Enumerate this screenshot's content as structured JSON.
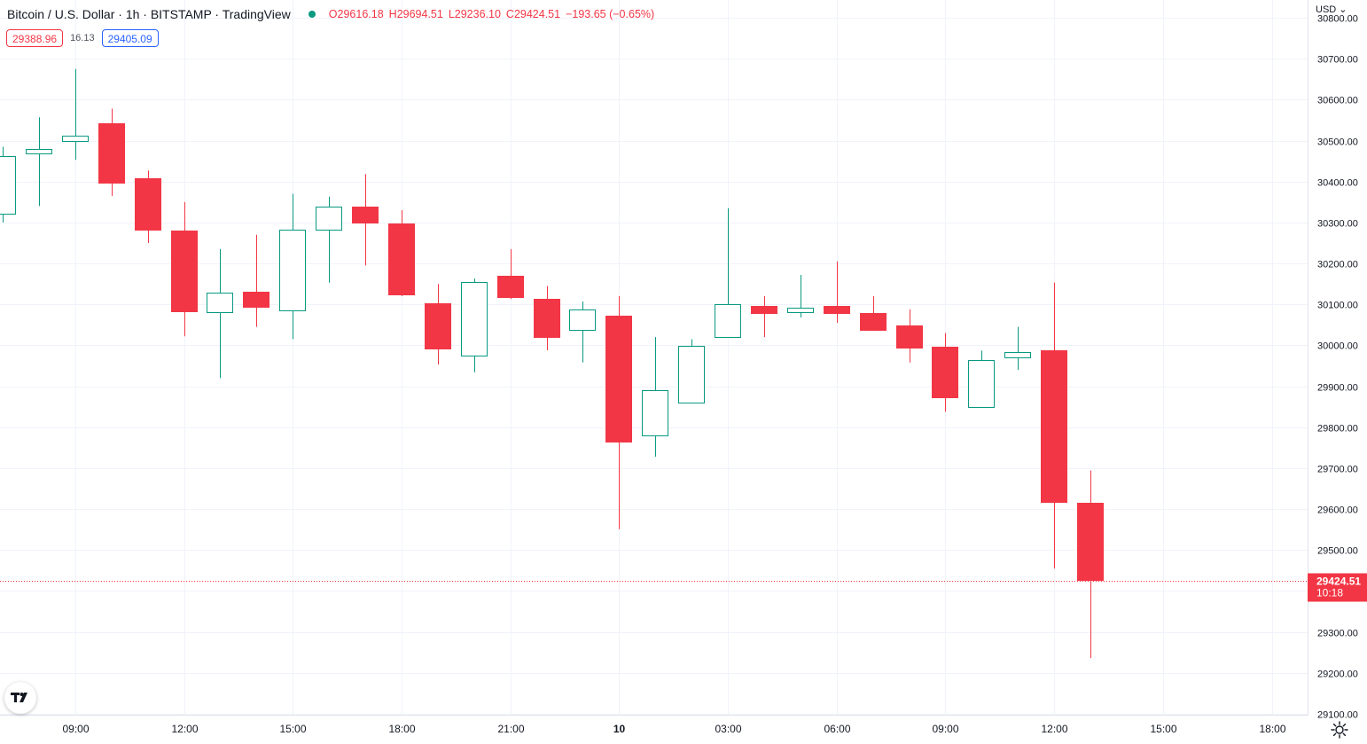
{
  "header": {
    "symbol_title": "Bitcoin / U.S. Dollar · 1h · BITSTAMP · TradingView",
    "open_label": "O",
    "open": "29616.18",
    "high_label": "H",
    "high": "29694.51",
    "low_label": "L",
    "low": "29236.10",
    "close_label": "C",
    "close": "29424.51",
    "change": "−193.65 (−0.65%)",
    "status_color": "#089981"
  },
  "quote": {
    "bid": "29388.96",
    "spread": "16.13",
    "ask": "29405.09"
  },
  "currency": "USD ⌄",
  "last_price": {
    "value": "29424.51",
    "countdown": "10:18"
  },
  "icons": {
    "logo": "tradingview-logo-icon",
    "settings": "gear-icon"
  },
  "colors": {
    "up": "#089981",
    "down": "#f23645",
    "grid": "#f0f3fa"
  },
  "chart_data": {
    "type": "candlestick",
    "x_tick_labels": [
      "09:00",
      "12:00",
      "15:00",
      "18:00",
      "21:00",
      "10",
      "03:00",
      "06:00",
      "09:00",
      "12:00",
      "15:00",
      "18:00"
    ],
    "y_tick_labels": [
      "29100.00",
      "29200.00",
      "29300.00",
      "29400.00",
      "29500.00",
      "29600.00",
      "29700.00",
      "29800.00",
      "29900.00",
      "30000.00",
      "30100.00",
      "30200.00",
      "30300.00",
      "30400.00",
      "30500.00",
      "30600.00",
      "30700.00",
      "30800.00"
    ],
    "ylim": [
      29100,
      30800
    ],
    "grid": true,
    "candles": [
      {
        "o": 30322,
        "h": 30485,
        "l": 30300,
        "c": 30462
      },
      {
        "o": 30469,
        "h": 30557,
        "l": 30340,
        "c": 30479
      },
      {
        "o": 30500,
        "h": 30675,
        "l": 30453,
        "c": 30512
      },
      {
        "o": 30542,
        "h": 30578,
        "l": 30365,
        "c": 30394
      },
      {
        "o": 30408,
        "h": 30427,
        "l": 30250,
        "c": 30280
      },
      {
        "o": 30280,
        "h": 30350,
        "l": 30022,
        "c": 30080
      },
      {
        "o": 30080,
        "h": 30235,
        "l": 29920,
        "c": 30128
      },
      {
        "o": 30130,
        "h": 30270,
        "l": 30045,
        "c": 30092
      },
      {
        "o": 30085,
        "h": 30370,
        "l": 30015,
        "c": 30283
      },
      {
        "o": 30283,
        "h": 30363,
        "l": 30153,
        "c": 30338
      },
      {
        "o": 30338,
        "h": 30418,
        "l": 30195,
        "c": 30297
      },
      {
        "o": 30297,
        "h": 30330,
        "l": 30120,
        "c": 30122
      },
      {
        "o": 30102,
        "h": 30150,
        "l": 29953,
        "c": 29990
      },
      {
        "o": 29975,
        "h": 30163,
        "l": 29934,
        "c": 30155
      },
      {
        "o": 30170,
        "h": 30235,
        "l": 30113,
        "c": 30115
      },
      {
        "o": 30113,
        "h": 30145,
        "l": 29988,
        "c": 30018
      },
      {
        "o": 30038,
        "h": 30107,
        "l": 29958,
        "c": 30088
      },
      {
        "o": 30073,
        "h": 30120,
        "l": 29551,
        "c": 29763
      },
      {
        "o": 29780,
        "h": 30020,
        "l": 29728,
        "c": 29890
      },
      {
        "o": 29860,
        "h": 30015,
        "l": 29860,
        "c": 29998
      },
      {
        "o": 30020,
        "h": 30335,
        "l": 30020,
        "c": 30101
      },
      {
        "o": 30097,
        "h": 30120,
        "l": 30020,
        "c": 30076
      },
      {
        "o": 30080,
        "h": 30172,
        "l": 30068,
        "c": 30091
      },
      {
        "o": 30096,
        "h": 30205,
        "l": 30055,
        "c": 30076
      },
      {
        "o": 30078,
        "h": 30120,
        "l": 30038,
        "c": 30035
      },
      {
        "o": 30048,
        "h": 30088,
        "l": 29958,
        "c": 29993
      },
      {
        "o": 29996,
        "h": 30030,
        "l": 29838,
        "c": 29870
      },
      {
        "o": 29850,
        "h": 29987,
        "l": 29850,
        "c": 29963
      },
      {
        "o": 29970,
        "h": 30045,
        "l": 29940,
        "c": 29983
      },
      {
        "o": 29987,
        "h": 30153,
        "l": 29455,
        "c": 29616
      },
      {
        "o": 29616.18,
        "h": 29694.51,
        "l": 29236.1,
        "c": 29424.51
      }
    ]
  }
}
